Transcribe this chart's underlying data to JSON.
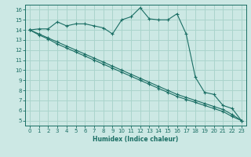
{
  "xlabel": "Humidex (Indice chaleur)",
  "bg_color": "#cce8e4",
  "grid_color": "#aad4cc",
  "line_color": "#1a6e64",
  "xlim": [
    -0.5,
    23.5
  ],
  "ylim": [
    4.5,
    16.5
  ],
  "xticks": [
    0,
    1,
    2,
    3,
    4,
    5,
    6,
    7,
    8,
    9,
    10,
    11,
    12,
    13,
    14,
    15,
    16,
    17,
    18,
    19,
    20,
    21,
    22,
    23
  ],
  "yticks": [
    5,
    6,
    7,
    8,
    9,
    10,
    11,
    12,
    13,
    14,
    15,
    16
  ],
  "line1_x": [
    0,
    1,
    2,
    3,
    4,
    5,
    6,
    7,
    8,
    9,
    10,
    11,
    12,
    13,
    14,
    15,
    16,
    17,
    18,
    19,
    20,
    21,
    22,
    23
  ],
  "line1_y": [
    14.0,
    14.1,
    14.1,
    14.8,
    14.4,
    14.6,
    14.6,
    14.4,
    14.2,
    13.6,
    15.0,
    15.3,
    16.2,
    15.1,
    15.0,
    15.0,
    15.6,
    13.6,
    9.3,
    7.8,
    7.6,
    6.5,
    6.2,
    5.0
  ],
  "line2_x": [
    0,
    1,
    2,
    3,
    4,
    5,
    6,
    7,
    8,
    9,
    10,
    11,
    12,
    13,
    14,
    15,
    16,
    17,
    18,
    19,
    20,
    21,
    22,
    23
  ],
  "line2_y": [
    14.0,
    13.6,
    13.2,
    12.8,
    12.4,
    12.0,
    11.6,
    11.2,
    10.8,
    10.4,
    10.0,
    9.6,
    9.2,
    8.8,
    8.4,
    8.0,
    7.6,
    7.3,
    7.0,
    6.7,
    6.4,
    6.1,
    5.6,
    5.0
  ],
  "line3_x": [
    0,
    1,
    2,
    3,
    4,
    5,
    6,
    7,
    8,
    9,
    10,
    11,
    12,
    13,
    14,
    15,
    16,
    17,
    18,
    19,
    20,
    21,
    22,
    23
  ],
  "line3_y": [
    14.0,
    13.5,
    13.1,
    12.6,
    12.2,
    11.8,
    11.4,
    11.0,
    10.6,
    10.2,
    9.8,
    9.4,
    9.0,
    8.6,
    8.2,
    7.8,
    7.4,
    7.1,
    6.8,
    6.5,
    6.2,
    5.9,
    5.4,
    5.0
  ]
}
